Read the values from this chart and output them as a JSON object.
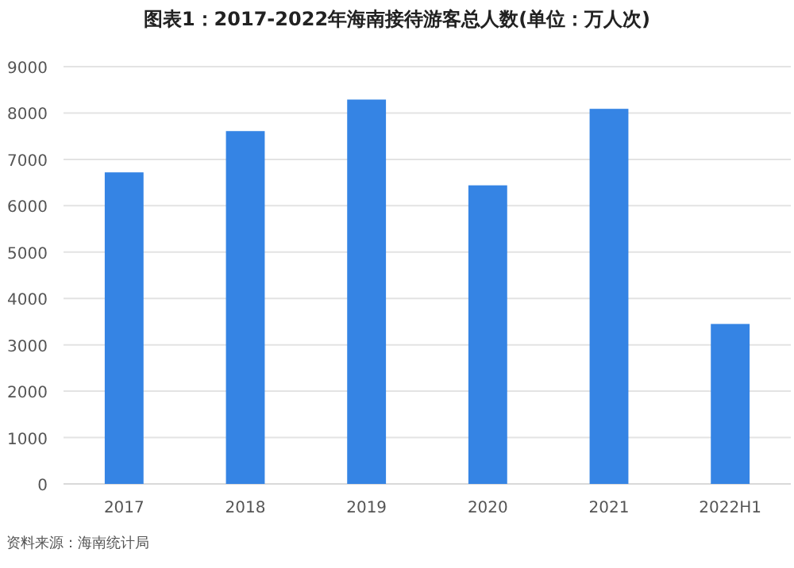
{
  "chart_data": {
    "type": "bar",
    "title": "图表1：2017-2022年海南接待游客总人数(单位：万人次)",
    "categories": [
      "2017",
      "2018",
      "2019",
      "2020",
      "2021",
      "2022H1"
    ],
    "values": [
      6720,
      7610,
      8290,
      6440,
      8090,
      3450
    ],
    "color": "#3584e4",
    "ylim": [
      0,
      9000
    ],
    "yticks": [
      0,
      1000,
      2000,
      3000,
      4000,
      5000,
      6000,
      7000,
      8000,
      9000
    ],
    "grid": "y",
    "annotations": [
      "资料来源：海南统计局"
    ]
  }
}
